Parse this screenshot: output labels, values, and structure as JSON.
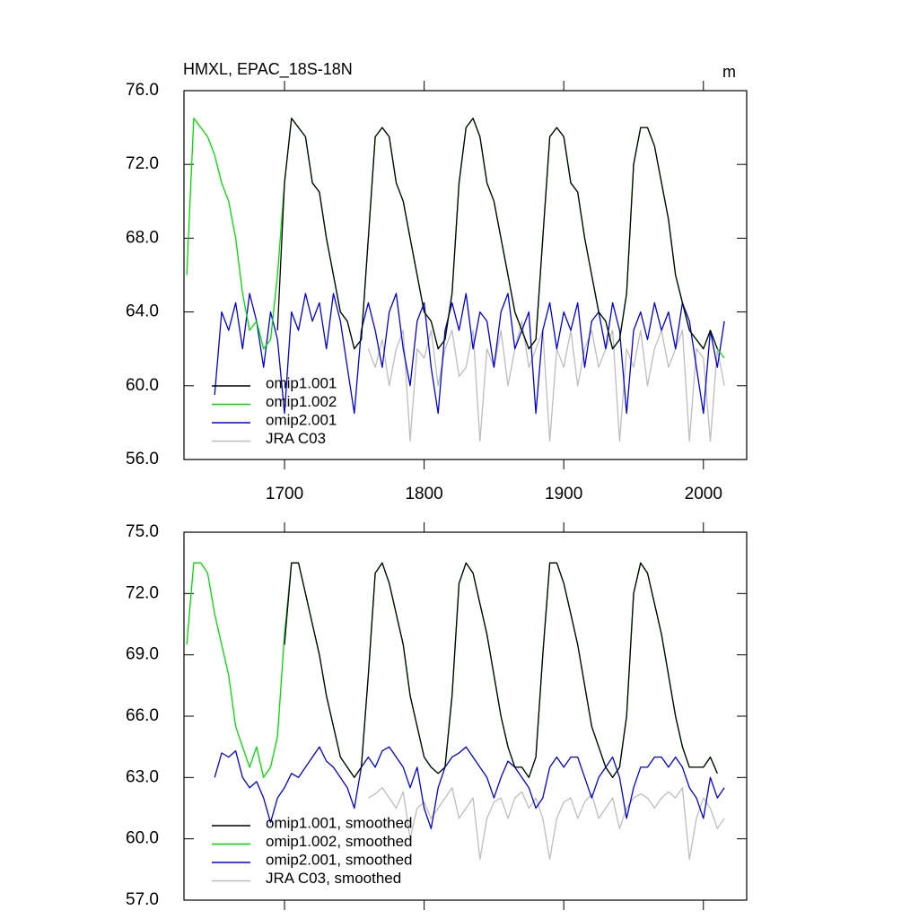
{
  "chart_data": [
    {
      "type": "line",
      "title": "HMXL, EPAC_18S-18N",
      "units": "m",
      "x": [
        1630,
        1635,
        1640,
        1645,
        1650,
        1655,
        1660,
        1665,
        1670,
        1675,
        1680,
        1685,
        1690,
        1695,
        1700,
        1705,
        1710,
        1715,
        1720,
        1725,
        1730,
        1735,
        1740,
        1745,
        1750,
        1755,
        1760,
        1765,
        1770,
        1775,
        1780,
        1785,
        1790,
        1795,
        1800,
        1805,
        1810,
        1815,
        1820,
        1825,
        1830,
        1835,
        1840,
        1845,
        1850,
        1855,
        1860,
        1865,
        1870,
        1875,
        1880,
        1885,
        1890,
        1895,
        1900,
        1905,
        1910,
        1915,
        1920,
        1925,
        1930,
        1935,
        1940,
        1945,
        1950,
        1955,
        1960,
        1965,
        1970,
        1975,
        1980,
        1985,
        1990,
        1995,
        2000,
        2005,
        2010,
        2015
      ],
      "xlim": [
        1628,
        2031
      ],
      "xticks": [
        1700,
        1800,
        1900,
        2000
      ],
      "ylim": [
        56,
        76
      ],
      "yticks": [
        {
          "value": 56,
          "label": "56.0"
        },
        {
          "value": 60,
          "label": "60.0"
        },
        {
          "value": 64,
          "label": "64.0"
        },
        {
          "value": 68,
          "label": "68.0"
        },
        {
          "value": 72,
          "label": "72.0"
        },
        {
          "value": 76,
          "label": "76.0"
        }
      ],
      "series": [
        {
          "name": "omip1.001",
          "color": "#000000",
          "values": [
            null,
            null,
            null,
            null,
            null,
            null,
            null,
            null,
            null,
            null,
            null,
            null,
            null,
            63,
            71,
            74.5,
            74,
            73.5,
            71,
            70.5,
            68,
            66,
            64,
            63.5,
            62,
            62.5,
            68,
            73.5,
            74,
            73.5,
            71,
            70,
            68,
            66,
            64,
            63.5,
            62,
            62.5,
            65,
            71,
            74,
            74.5,
            73.5,
            71,
            70,
            68,
            66,
            64,
            63,
            62,
            62.5,
            68,
            73.5,
            74,
            73.5,
            71,
            70.5,
            68,
            66,
            64,
            63.5,
            62,
            62.5,
            65,
            72,
            74,
            74,
            73,
            71,
            69,
            66,
            64.5,
            63,
            62.5,
            62,
            63,
            62,
            null
          ]
        },
        {
          "name": "omip1.002",
          "color": "#00dd00",
          "values": [
            66,
            74.5,
            74,
            73.5,
            72.5,
            71,
            70,
            68,
            65,
            63,
            63.5,
            62,
            62.5,
            66,
            71,
            74.5,
            74,
            73.5,
            71,
            70.5,
            68,
            66,
            64,
            63.5,
            62,
            62.5,
            68,
            73.5,
            74,
            73.5,
            71,
            70,
            68,
            66,
            64,
            63.5,
            62,
            62.5,
            65,
            71,
            74,
            74.5,
            73.5,
            71,
            70,
            68,
            66,
            64,
            63,
            62,
            62.5,
            68,
            73.5,
            74,
            73.5,
            71,
            70.5,
            68,
            66,
            64,
            63.5,
            62,
            62.5,
            65,
            72,
            74,
            74,
            73,
            71,
            69,
            66,
            64.5,
            63,
            62.5,
            62,
            63,
            62,
            61.5
          ]
        },
        {
          "name": "omip2.001",
          "color": "#0000dd",
          "values": [
            null,
            null,
            null,
            null,
            59.5,
            64,
            63,
            64.5,
            62,
            65,
            63.5,
            61,
            64,
            62.5,
            58.5,
            64,
            63,
            65,
            63.5,
            64.5,
            62,
            65,
            63.5,
            61,
            58.5,
            63,
            64.5,
            63,
            61,
            64,
            65,
            62,
            60,
            63.5,
            64.5,
            61,
            58.5,
            63,
            64.5,
            63,
            65,
            62,
            64,
            63.5,
            61,
            64,
            65,
            62,
            63,
            64,
            58.5,
            63,
            64.5,
            62,
            64,
            63,
            64.5,
            61,
            63.5,
            64,
            62,
            64.5,
            63,
            58.5,
            63,
            64,
            62.5,
            64.5,
            63,
            64,
            62,
            64.5,
            63.5,
            61,
            58.5,
            63,
            61,
            63.5
          ]
        },
        {
          "name": "JRA C03",
          "color": "#bdbdbd",
          "values": [
            null,
            null,
            null,
            null,
            null,
            null,
            null,
            null,
            null,
            null,
            null,
            null,
            null,
            null,
            null,
            null,
            null,
            null,
            null,
            null,
            null,
            null,
            null,
            null,
            null,
            null,
            62,
            61,
            62.5,
            60,
            62,
            63,
            57,
            62,
            61.5,
            63,
            60,
            62,
            63,
            60.5,
            61,
            63,
            57,
            62,
            61,
            63,
            60,
            62,
            63.5,
            61,
            62,
            63,
            57,
            62,
            61,
            63,
            60,
            62,
            63,
            61,
            62,
            63,
            57,
            62,
            61,
            63,
            60,
            62,
            63,
            61,
            62,
            63,
            57,
            62,
            61.5,
            57,
            62,
            60
          ]
        }
      ]
    },
    {
      "type": "line",
      "x": [
        1630,
        1635,
        1640,
        1645,
        1650,
        1655,
        1660,
        1665,
        1670,
        1675,
        1680,
        1685,
        1690,
        1695,
        1700,
        1705,
        1710,
        1715,
        1720,
        1725,
        1730,
        1735,
        1740,
        1745,
        1750,
        1755,
        1760,
        1765,
        1770,
        1775,
        1780,
        1785,
        1790,
        1795,
        1800,
        1805,
        1810,
        1815,
        1820,
        1825,
        1830,
        1835,
        1840,
        1845,
        1850,
        1855,
        1860,
        1865,
        1870,
        1875,
        1880,
        1885,
        1890,
        1895,
        1900,
        1905,
        1910,
        1915,
        1920,
        1925,
        1930,
        1935,
        1940,
        1945,
        1950,
        1955,
        1960,
        1965,
        1970,
        1975,
        1980,
        1985,
        1990,
        1995,
        2000,
        2005,
        2010,
        2015
      ],
      "xlim": [
        1628,
        2031
      ],
      "xticks": [
        1700,
        1800,
        1900,
        2000
      ],
      "ylim": [
        57,
        75
      ],
      "yticks": [
        {
          "value": 57,
          "label": "57.0"
        },
        {
          "value": 60,
          "label": "60.0"
        },
        {
          "value": 63,
          "label": "63.0"
        },
        {
          "value": 66,
          "label": "66.0"
        },
        {
          "value": 69,
          "label": "69.0"
        },
        {
          "value": 72,
          "label": "72.0"
        },
        {
          "value": 75,
          "label": "75.0"
        }
      ],
      "series": [
        {
          "name": "omip1.001, smoothed",
          "color": "#000000",
          "values": [
            null,
            null,
            null,
            null,
            null,
            null,
            null,
            null,
            null,
            null,
            null,
            null,
            null,
            null,
            69.5,
            73.5,
            73.5,
            72,
            70.5,
            69,
            67,
            65.5,
            64,
            63.5,
            63,
            63.5,
            68,
            73,
            73.5,
            72.5,
            71,
            69.5,
            67,
            65.5,
            64,
            63.5,
            63.2,
            63.5,
            67,
            72.5,
            73.5,
            73,
            71.5,
            70,
            68,
            66,
            64.5,
            63.5,
            63.5,
            63,
            64,
            69,
            73.5,
            73.5,
            72.5,
            71,
            69.5,
            67.5,
            65.5,
            64.5,
            63.5,
            63,
            63.5,
            66,
            72,
            73.5,
            73,
            71.5,
            70,
            68,
            66,
            64.5,
            63.5,
            63.5,
            63.5,
            64,
            63.2,
            null
          ]
        },
        {
          "name": "omip1.002, smoothed",
          "color": "#00dd00",
          "values": [
            69.5,
            73.5,
            73.5,
            73,
            71,
            69.5,
            68,
            65.5,
            64.5,
            63.5,
            64.5,
            63,
            63.5,
            65,
            70,
            73.5,
            73.5,
            72,
            70.5,
            69,
            67,
            65.5,
            64,
            63.5,
            63,
            63.5,
            68,
            73,
            73.5,
            72.5,
            71,
            69.5,
            67,
            65.5,
            64,
            63.5,
            63.2,
            63.5,
            67,
            72.5,
            73.5,
            73,
            71.5,
            70,
            68,
            66,
            64.5,
            63.5,
            63.5,
            63,
            64,
            69,
            73.5,
            73.5,
            72.5,
            71,
            69.5,
            67.5,
            65.5,
            64.5,
            63.5,
            63,
            63.5,
            66,
            72,
            73.5,
            73,
            71.5,
            70,
            68,
            66,
            64.5,
            63.5,
            63.5,
            63.5,
            64,
            63.2,
            null
          ]
        },
        {
          "name": "omip2.001, smoothed",
          "color": "#0000dd",
          "values": [
            null,
            null,
            null,
            null,
            63,
            64.2,
            64,
            64.3,
            63,
            62.5,
            62.8,
            62,
            60.8,
            62,
            62.5,
            63.2,
            63,
            63.5,
            64,
            64.5,
            63.8,
            63.5,
            63,
            62.5,
            61.5,
            63.5,
            64,
            63.5,
            64.3,
            64.5,
            64,
            63.5,
            62.5,
            63.5,
            61.5,
            60.5,
            62.5,
            63.5,
            64,
            64.2,
            64.5,
            64,
            63.5,
            63,
            62,
            63,
            63.8,
            63.5,
            63,
            62.5,
            61.5,
            62,
            63.5,
            64,
            63.5,
            64,
            64,
            63,
            62,
            63,
            63.5,
            64,
            63,
            61,
            62.5,
            63.5,
            63.5,
            64,
            64,
            63.5,
            64,
            63.5,
            62.5,
            62,
            61,
            63,
            62,
            62.5
          ]
        },
        {
          "name": "JRA C03, smoothed",
          "color": "#bdbdbd",
          "values": [
            null,
            null,
            null,
            null,
            null,
            null,
            null,
            null,
            null,
            null,
            null,
            null,
            null,
            null,
            null,
            null,
            null,
            null,
            null,
            null,
            null,
            null,
            null,
            null,
            null,
            null,
            62,
            62.2,
            62.5,
            62,
            61.5,
            62.3,
            60,
            61.5,
            61.8,
            61,
            61.5,
            62,
            62.5,
            61,
            61.5,
            62,
            59,
            61,
            61.8,
            62,
            61,
            62,
            62.3,
            61.5,
            62,
            61,
            59,
            61,
            61.8,
            62,
            61,
            61.8,
            62.2,
            61,
            61.5,
            62,
            60.5,
            61.5,
            62,
            62.2,
            62,
            61.5,
            62,
            62.3,
            62,
            62.5,
            59,
            61,
            62,
            61.5,
            60.5,
            61
          ]
        }
      ]
    }
  ]
}
